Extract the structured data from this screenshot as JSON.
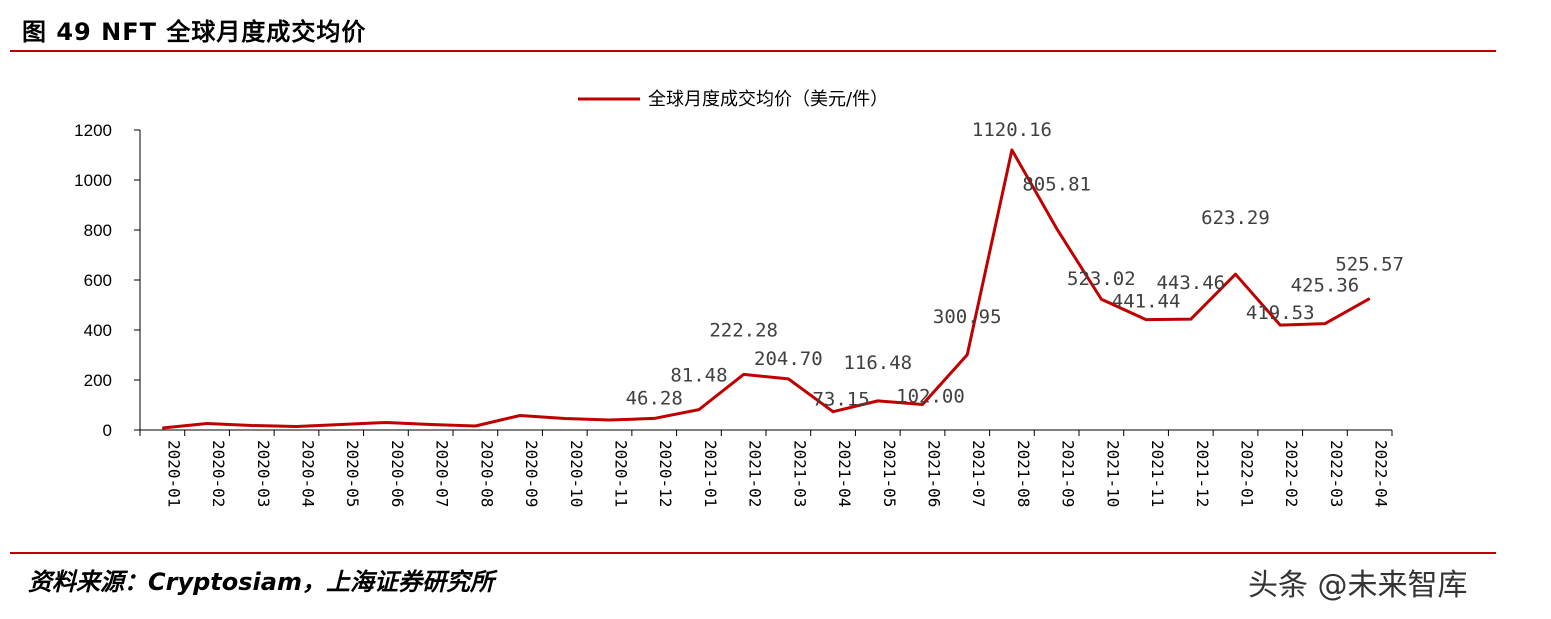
{
  "figure": {
    "title": "图 49 NFT 全球月度成交均价",
    "source": "资料来源：Cryptosiam，上海证券研究所",
    "watermark": "头条 @未来智库",
    "accent_color": "#c00000"
  },
  "chart_data": {
    "type": "line",
    "title": "",
    "xlabel": "",
    "ylabel": "",
    "ylim": [
      0,
      1200
    ],
    "yticks": [
      0,
      200,
      400,
      600,
      800,
      1000,
      1200
    ],
    "grid": false,
    "legend_position": "top-center",
    "categories": [
      "2020-01",
      "2020-02",
      "2020-03",
      "2020-04",
      "2020-05",
      "2020-06",
      "2020-07",
      "2020-08",
      "2020-09",
      "2020-10",
      "2020-11",
      "2020-12",
      "2021-01",
      "2021-02",
      "2021-03",
      "2021-04",
      "2021-05",
      "2021-06",
      "2021-07",
      "2021-08",
      "2021-09",
      "2021-10",
      "2021-11",
      "2021-12",
      "2022-01",
      "2022-02",
      "2022-03",
      "2022-04"
    ],
    "series": [
      {
        "name": "全球月度成交均价（美元/件）",
        "color": "#c00000",
        "values": [
          8,
          26,
          18,
          14,
          22,
          30,
          22,
          16,
          58,
          46,
          40,
          46.28,
          81.48,
          222.28,
          204.7,
          73.15,
          116.48,
          102.0,
          300.95,
          1120.16,
          805.81,
          523.02,
          441.44,
          443.46,
          623.29,
          419.53,
          425.36,
          525.57
        ],
        "data_labels": [
          null,
          null,
          null,
          null,
          null,
          null,
          null,
          null,
          null,
          null,
          null,
          "46.28",
          "81.48",
          "222.28",
          "204.70",
          "73.15",
          "116.48",
          "102.00",
          "300.95",
          "1120.16",
          "805.81",
          "523.02",
          "441.44",
          "443.46",
          "623.29",
          "419.53",
          "425.36",
          "525.57"
        ]
      }
    ]
  }
}
